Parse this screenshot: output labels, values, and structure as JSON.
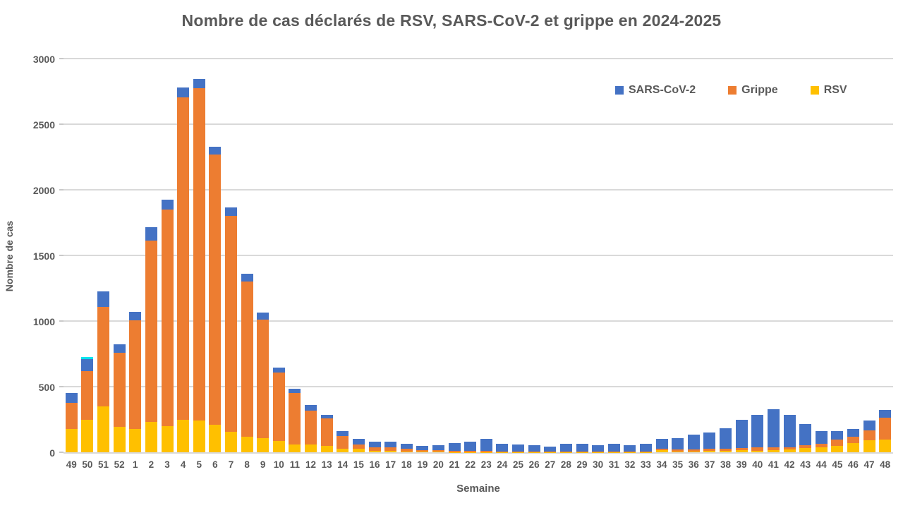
{
  "colors": {
    "background": "#ffffff",
    "text": "#595959",
    "gridline": "#d9d9d9",
    "axis_line": "#d9d9d9",
    "sars_blue": "#4472c4",
    "grippe_orange": "#ed7d31",
    "rsv_yellow": "#ffc000",
    "selection_cyan": "#00e4ee"
  },
  "chart_data": {
    "type": "bar",
    "stacked": true,
    "title": "Nombre de cas déclarés de RSV, SARS-CoV-2 et grippe en 2024-2025",
    "xlabel": "Semaine",
    "ylabel": "Nombre de cas",
    "ylim": [
      0,
      3000
    ],
    "yticks": [
      0,
      500,
      1000,
      1500,
      2000,
      2500,
      3000
    ],
    "grid": "horizontal",
    "legend_position": "top-right-inside",
    "categories": [
      "49",
      "50",
      "51",
      "52",
      "1",
      "2",
      "3",
      "4",
      "5",
      "6",
      "7",
      "8",
      "9",
      "10",
      "11",
      "12",
      "13",
      "14",
      "15",
      "16",
      "17",
      "18",
      "19",
      "20",
      "21",
      "22",
      "23",
      "24",
      "25",
      "26",
      "27",
      "28",
      "29",
      "30",
      "31",
      "32",
      "33",
      "34",
      "35",
      "36",
      "37",
      "38",
      "39",
      "40",
      "41",
      "42",
      "43",
      "44",
      "45",
      "46",
      "47",
      "48"
    ],
    "stack_order_bottom_to_top": [
      "RSV",
      "Grippe",
      "SARS-CoV-2"
    ],
    "series": [
      {
        "name": "RSV",
        "color": "#ffc000",
        "values": [
          180,
          245,
          348,
          195,
          175,
          231,
          197,
          249,
          240,
          210,
          158,
          117,
          109,
          85,
          60,
          59,
          50,
          29,
          25,
          13,
          11,
          7,
          4,
          3,
          2,
          2,
          2,
          2,
          2,
          1,
          1,
          1,
          1,
          1,
          1,
          1,
          1,
          15,
          8,
          8,
          10,
          12,
          14,
          13,
          16,
          20,
          30,
          38,
          48,
          70,
          91,
          97
        ]
      },
      {
        "name": "Grippe",
        "color": "#ed7d31",
        "values": [
          195,
          375,
          758,
          565,
          830,
          1384,
          1651,
          2455,
          2532,
          2061,
          1641,
          1186,
          904,
          525,
          394,
          260,
          206,
          95,
          32,
          23,
          25,
          21,
          13,
          13,
          9,
          7,
          8,
          6,
          6,
          5,
          4,
          5,
          6,
          4,
          5,
          4,
          5,
          10,
          12,
          15,
          15,
          15,
          18,
          23,
          20,
          18,
          22,
          25,
          48,
          48,
          77,
          165
        ]
      },
      {
        "name": "SARS-CoV-2",
        "color": "#4472c4",
        "values": [
          77,
          105,
          120,
          63,
          63,
          100,
          77,
          77,
          72,
          59,
          65,
          57,
          50,
          35,
          30,
          41,
          30,
          39,
          48,
          43,
          46,
          36,
          31,
          40,
          61,
          73,
          90,
          57,
          51,
          48,
          36,
          58,
          56,
          51,
          60,
          49,
          58,
          77,
          89,
          110,
          126,
          154,
          215,
          250,
          290,
          245,
          165,
          100,
          63,
          61,
          72,
          63
        ]
      }
    ],
    "legend": {
      "items": [
        {
          "label": "SARS-CoV-2",
          "color": "#4472c4"
        },
        {
          "label": "Grippe",
          "color": "#ed7d31"
        },
        {
          "label": "RSV",
          "color": "#ffc000"
        }
      ]
    },
    "selection_highlight": {
      "category": "50",
      "series": "SARS-CoV-2",
      "color": "#00e4ee"
    }
  }
}
